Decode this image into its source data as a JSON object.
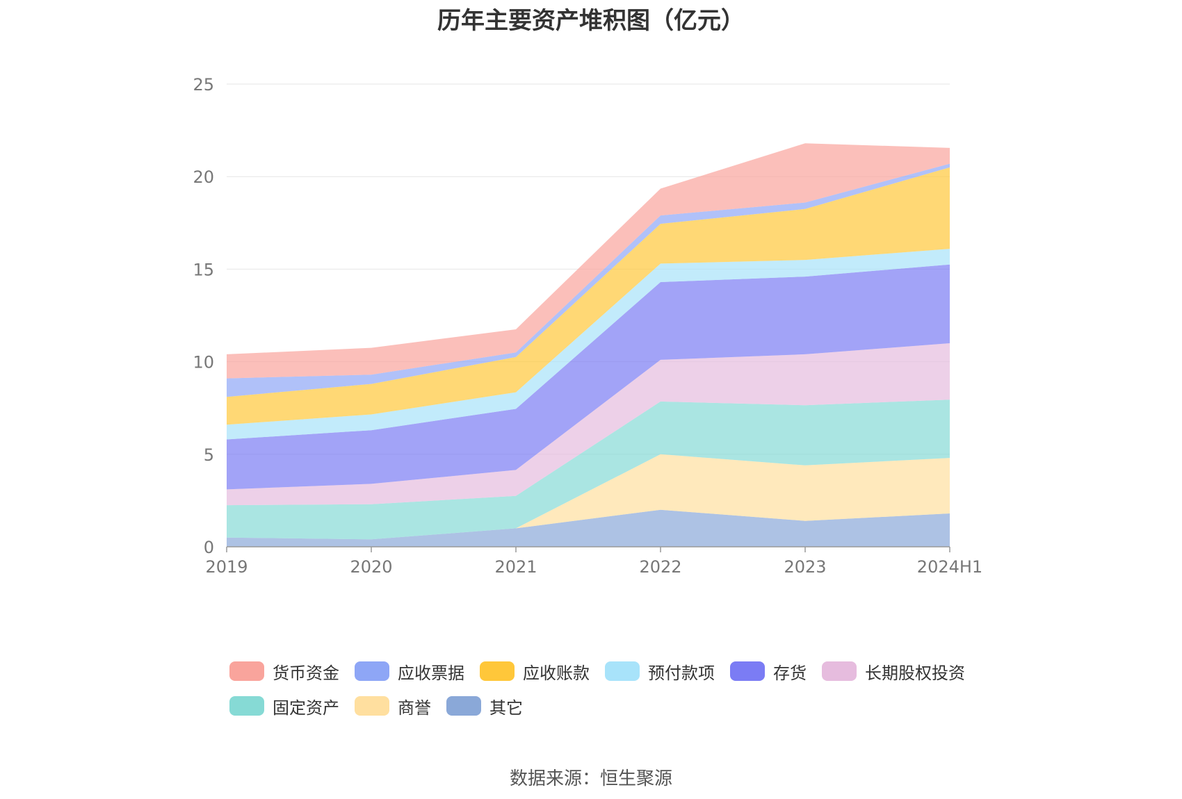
{
  "chart_data": {
    "type": "area",
    "title": "历年主要资产堆积图（亿元）",
    "source": "数据来源：恒生聚源",
    "stacked": true,
    "categories": [
      "2019",
      "2020",
      "2021",
      "2022",
      "2023",
      "2024H1"
    ],
    "ylim": [
      0,
      25
    ],
    "yticks": [
      0,
      5,
      10,
      15,
      20,
      25
    ],
    "grid": true,
    "legend_position": "bottom",
    "series": [
      {
        "name": "其它",
        "color": "#8aa8d8",
        "values": [
          0.5,
          0.4,
          1.0,
          2.0,
          1.4,
          1.8
        ]
      },
      {
        "name": "商誉",
        "color": "#ffdf9f",
        "values": [
          0.0,
          0.0,
          0.0,
          3.0,
          3.0,
          3.0
        ]
      },
      {
        "name": "固定资产",
        "color": "#86dad5",
        "values": [
          1.75,
          1.9,
          1.75,
          2.85,
          3.25,
          3.15
        ]
      },
      {
        "name": "长期股权投资",
        "color": "#e6bcde",
        "values": [
          0.85,
          1.1,
          1.4,
          2.25,
          2.75,
          3.05
        ]
      },
      {
        "name": "存货",
        "color": "#7b7cf4",
        "values": [
          2.7,
          2.9,
          3.3,
          4.2,
          4.2,
          4.25
        ]
      },
      {
        "name": "预付款项",
        "color": "#a8e3fa",
        "values": [
          0.8,
          0.85,
          0.9,
          1.0,
          0.9,
          0.85
        ]
      },
      {
        "name": "应收账款",
        "color": "#ffc73a",
        "values": [
          1.5,
          1.65,
          1.9,
          2.15,
          2.75,
          4.4
        ]
      },
      {
        "name": "应收票据",
        "color": "#8ea6f6",
        "values": [
          1.0,
          0.5,
          0.25,
          0.45,
          0.35,
          0.2
        ]
      },
      {
        "name": "货币资金",
        "color": "#f9a49c",
        "values": [
          1.3,
          1.45,
          1.25,
          1.45,
          3.2,
          0.85
        ]
      }
    ],
    "legend_order": [
      "货币资金",
      "应收票据",
      "应收账款",
      "预付款项",
      "存货",
      "长期股权投资",
      "固定资产",
      "商誉",
      "其它"
    ]
  }
}
